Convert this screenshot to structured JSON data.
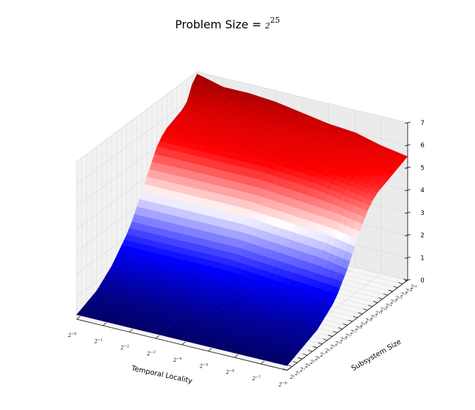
{
  "chart_data": {
    "type": "surface",
    "title": "Problem Size = ",
    "title_base": "2",
    "title_exponent": "25",
    "xlabel": "Temporal Locality",
    "ylabel": "Subsystem Size",
    "zlabel": "",
    "x_ticks": [
      {
        "base": "2",
        "exp": "−0"
      },
      {
        "base": "2",
        "exp": "−1"
      },
      {
        "base": "2",
        "exp": "−2"
      },
      {
        "base": "2",
        "exp": "−3"
      },
      {
        "base": "2",
        "exp": "−4"
      },
      {
        "base": "2",
        "exp": "−5"
      },
      {
        "base": "2",
        "exp": "−6"
      },
      {
        "base": "2",
        "exp": "−7"
      },
      {
        "base": "2",
        "exp": "−8"
      }
    ],
    "y_ticks": [
      {
        "base": "2",
        "exp": "1"
      },
      {
        "base": "2",
        "exp": "2"
      },
      {
        "base": "2",
        "exp": "3"
      },
      {
        "base": "2",
        "exp": "4"
      },
      {
        "base": "2",
        "exp": "5"
      },
      {
        "base": "2",
        "exp": "6"
      },
      {
        "base": "2",
        "exp": "7"
      },
      {
        "base": "2",
        "exp": "8"
      },
      {
        "base": "2",
        "exp": "9"
      },
      {
        "base": "2",
        "exp": "10"
      },
      {
        "base": "2",
        "exp": "11"
      },
      {
        "base": "2",
        "exp": "12"
      },
      {
        "base": "2",
        "exp": "13"
      },
      {
        "base": "2",
        "exp": "14"
      },
      {
        "base": "2",
        "exp": "15"
      },
      {
        "base": "2",
        "exp": "16"
      },
      {
        "base": "2",
        "exp": "17"
      },
      {
        "base": "2",
        "exp": "18"
      },
      {
        "base": "2",
        "exp": "19"
      },
      {
        "base": "2",
        "exp": "20"
      },
      {
        "base": "2",
        "exp": "21"
      },
      {
        "base": "2",
        "exp": "22"
      },
      {
        "base": "2",
        "exp": "23"
      },
      {
        "base": "2",
        "exp": "24"
      },
      {
        "base": "2",
        "exp": "25"
      }
    ],
    "z_ticks": [
      "0",
      "1",
      "2",
      "3",
      "4",
      "5",
      "6",
      "7"
    ],
    "zlim": [
      0,
      7
    ],
    "colormap": "seismic",
    "grid": true,
    "z_values": [
      [
        0.2,
        0.3,
        0.4,
        0.5,
        0.6,
        0.8,
        1.0,
        1.2,
        1.5,
        1.8,
        2.1,
        2.5,
        3.0,
        3.5,
        4.0,
        4.5,
        5.0,
        5.3,
        5.5,
        5.6,
        5.7,
        5.8,
        6.0,
        6.6,
        6.9
      ],
      [
        0.2,
        0.3,
        0.4,
        0.5,
        0.6,
        0.8,
        1.0,
        1.2,
        1.5,
        1.8,
        2.1,
        2.5,
        3.0,
        3.5,
        4.0,
        4.5,
        5.0,
        5.3,
        5.5,
        5.6,
        5.7,
        5.8,
        6.0,
        6.4,
        6.6
      ],
      [
        0.2,
        0.3,
        0.4,
        0.5,
        0.6,
        0.8,
        1.0,
        1.2,
        1.5,
        1.8,
        2.1,
        2.5,
        3.0,
        3.5,
        4.0,
        4.5,
        5.0,
        5.3,
        5.5,
        5.6,
        5.7,
        5.8,
        5.9,
        6.3,
        6.6
      ],
      [
        0.2,
        0.3,
        0.4,
        0.5,
        0.6,
        0.8,
        1.0,
        1.2,
        1.5,
        1.8,
        2.1,
        2.5,
        3.0,
        3.5,
        4.0,
        4.5,
        5.0,
        5.3,
        5.5,
        5.6,
        5.7,
        5.8,
        5.9,
        6.2,
        6.5
      ],
      [
        0.2,
        0.3,
        0.4,
        0.5,
        0.6,
        0.8,
        1.0,
        1.2,
        1.5,
        1.8,
        2.1,
        2.5,
        3.0,
        3.5,
        4.0,
        4.5,
        5.0,
        5.3,
        5.5,
        5.6,
        5.6,
        5.7,
        5.8,
        6.1,
        6.3
      ],
      [
        0.2,
        0.3,
        0.4,
        0.5,
        0.6,
        0.7,
        0.9,
        1.1,
        1.4,
        1.7,
        2.0,
        2.4,
        2.9,
        3.4,
        3.9,
        4.4,
        4.9,
        5.2,
        5.4,
        5.5,
        5.6,
        5.6,
        5.7,
        5.9,
        6.1
      ],
      [
        0.2,
        0.3,
        0.4,
        0.5,
        0.6,
        0.7,
        0.9,
        1.1,
        1.3,
        1.6,
        1.9,
        2.3,
        2.8,
        3.3,
        3.8,
        4.3,
        4.8,
        5.1,
        5.3,
        5.4,
        5.5,
        5.5,
        5.6,
        5.8,
        6.0
      ],
      [
        0.2,
        0.3,
        0.4,
        0.5,
        0.6,
        0.7,
        0.8,
        1.0,
        1.2,
        1.5,
        1.8,
        2.2,
        2.7,
        3.2,
        3.7,
        4.2,
        4.6,
        4.9,
        5.1,
        5.2,
        5.3,
        5.4,
        5.5,
        5.6,
        5.7
      ],
      [
        0.2,
        0.3,
        0.4,
        0.5,
        0.6,
        0.7,
        0.8,
        1.0,
        1.2,
        1.4,
        1.7,
        2.1,
        2.5,
        3.0,
        3.5,
        4.0,
        4.4,
        4.7,
        4.9,
        5.0,
        5.1,
        5.2,
        5.3,
        5.4,
        5.5
      ]
    ]
  }
}
